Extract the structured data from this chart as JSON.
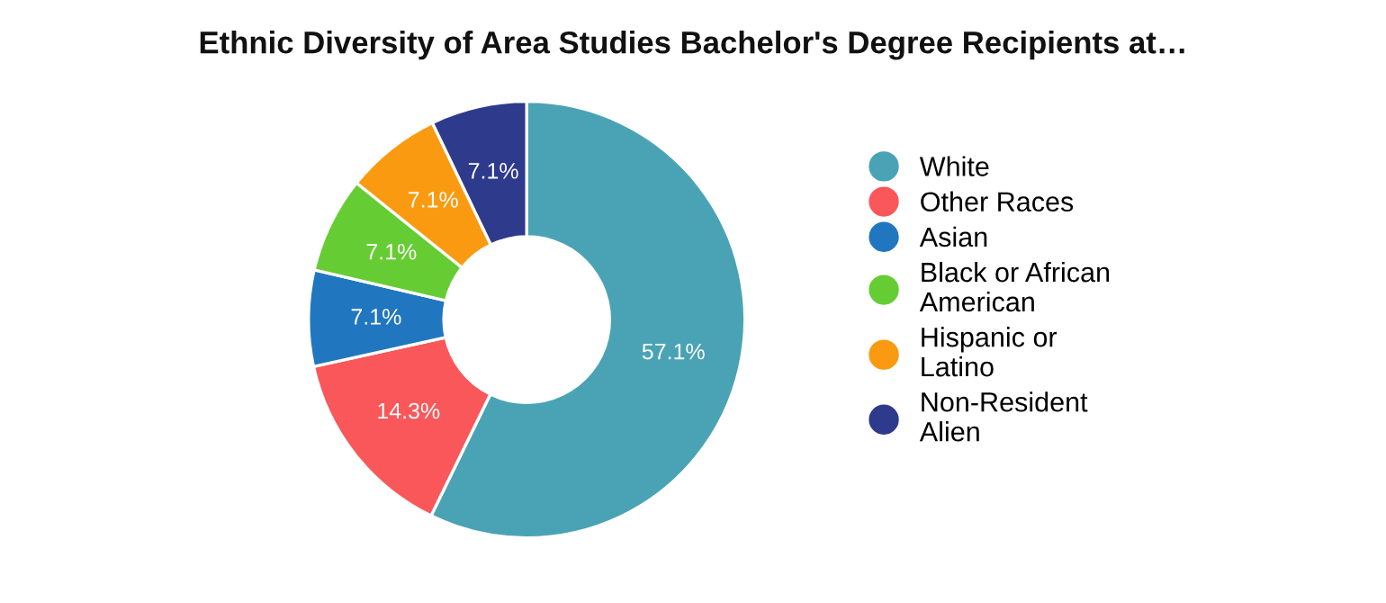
{
  "chart_data": {
    "type": "donut",
    "title": "Ethnic Diversity of Area Studies Bachelor's Degree Recipients at…",
    "categories": [
      "White",
      "Other Races",
      "Asian",
      "Black or African American",
      "Hispanic or Latino",
      "Non-Resident Alien"
    ],
    "values": [
      57.1,
      14.3,
      7.1,
      7.1,
      7.1,
      7.1
    ],
    "colors": [
      "#4aa3b5",
      "#f9575a",
      "#2176c0",
      "#66cc33",
      "#fa9a10",
      "#2e3a8c"
    ],
    "value_labels": [
      "57.1%",
      "14.3%",
      "7.1%",
      "7.1%",
      "7.1%",
      "7.1%"
    ],
    "legend": "right"
  }
}
